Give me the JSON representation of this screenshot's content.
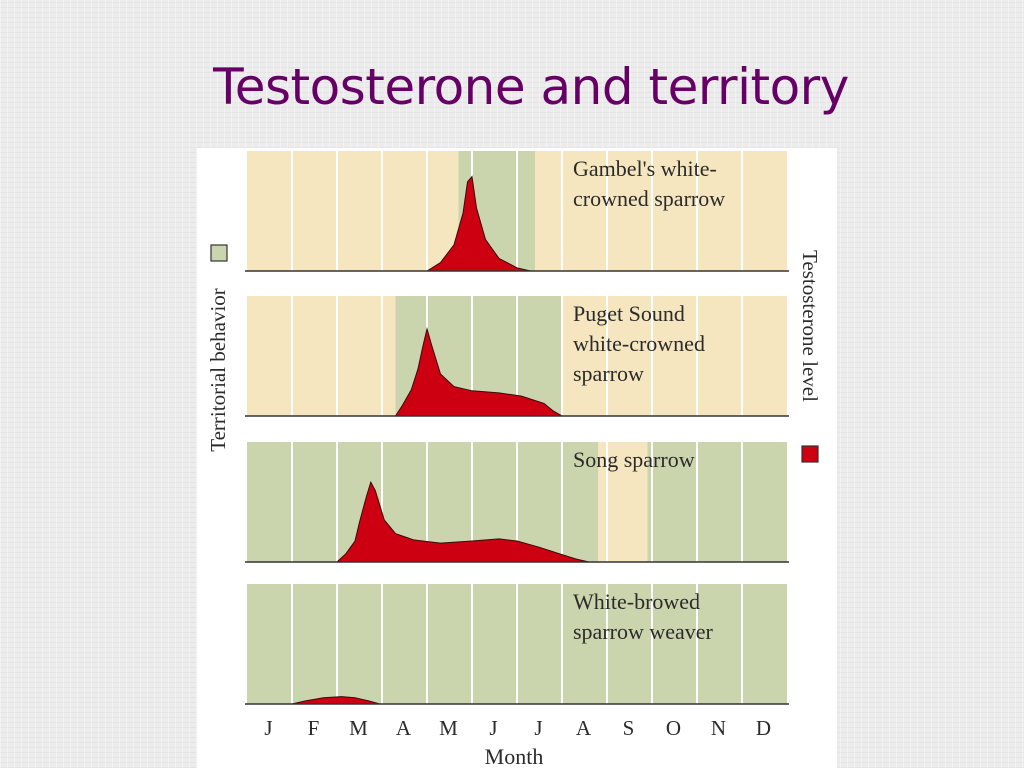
{
  "slide": {
    "title": "Testosterone and territory"
  },
  "legend": {
    "territorial_label": "Territorial behavior",
    "testosterone_label": "Testosterone level",
    "territorial_color": "#cbd5ad",
    "testosterone_color": "#cc0010",
    "background_color": "#f6e6c0"
  },
  "chart_data": {
    "type": "area",
    "x_axis": {
      "label": "Month",
      "ticks": [
        "J",
        "F",
        "M",
        "A",
        "M",
        "J",
        "J",
        "A",
        "S",
        "O",
        "N",
        "D"
      ]
    },
    "panels": [
      {
        "name_lines": [
          "Gambel's white-",
          "crowned sparrow"
        ],
        "territorial_months": [
          4.7,
          6.4
        ],
        "testosterone": [
          [
            4.0,
            0
          ],
          [
            4.3,
            0.08
          ],
          [
            4.6,
            0.25
          ],
          [
            4.8,
            0.55
          ],
          [
            4.9,
            0.85
          ],
          [
            5.0,
            0.9
          ],
          [
            5.1,
            0.6
          ],
          [
            5.3,
            0.3
          ],
          [
            5.6,
            0.12
          ],
          [
            6.0,
            0.03
          ],
          [
            6.3,
            0
          ]
        ]
      },
      {
        "name_lines": [
          "Puget Sound",
          "white-crowned",
          "sparrow"
        ],
        "territorial_months": [
          3.3,
          7.0
        ],
        "testosterone": [
          [
            3.3,
            0
          ],
          [
            3.45,
            0.1
          ],
          [
            3.65,
            0.25
          ],
          [
            3.8,
            0.45
          ],
          [
            3.9,
            0.65
          ],
          [
            4.0,
            0.83
          ],
          [
            4.1,
            0.68
          ],
          [
            4.3,
            0.4
          ],
          [
            4.6,
            0.28
          ],
          [
            5.0,
            0.24
          ],
          [
            5.6,
            0.22
          ],
          [
            6.1,
            0.19
          ],
          [
            6.6,
            0.12
          ],
          [
            6.8,
            0.05
          ],
          [
            7.0,
            0
          ]
        ]
      },
      {
        "name_lines": [
          "Song sparrow"
        ],
        "territorial_months": [
          0,
          7.8,
          8.9,
          12
        ],
        "testosterone": [
          [
            2.0,
            0
          ],
          [
            2.2,
            0.08
          ],
          [
            2.4,
            0.2
          ],
          [
            2.5,
            0.38
          ],
          [
            2.65,
            0.62
          ],
          [
            2.75,
            0.76
          ],
          [
            2.85,
            0.68
          ],
          [
            3.05,
            0.4
          ],
          [
            3.3,
            0.27
          ],
          [
            3.7,
            0.21
          ],
          [
            4.3,
            0.18
          ],
          [
            5.0,
            0.2
          ],
          [
            5.6,
            0.22
          ],
          [
            6.0,
            0.2
          ],
          [
            6.5,
            0.14
          ],
          [
            7.0,
            0.07
          ],
          [
            7.3,
            0.03
          ],
          [
            7.6,
            0
          ]
        ]
      },
      {
        "name_lines": [
          "White-browed",
          "sparrow weaver"
        ],
        "territorial_months": [
          0,
          12
        ],
        "testosterone": [
          [
            1.0,
            0
          ],
          [
            1.3,
            0.03
          ],
          [
            1.7,
            0.06
          ],
          [
            2.1,
            0.07
          ],
          [
            2.4,
            0.06
          ],
          [
            2.7,
            0.03
          ],
          [
            2.95,
            0
          ]
        ]
      }
    ]
  }
}
